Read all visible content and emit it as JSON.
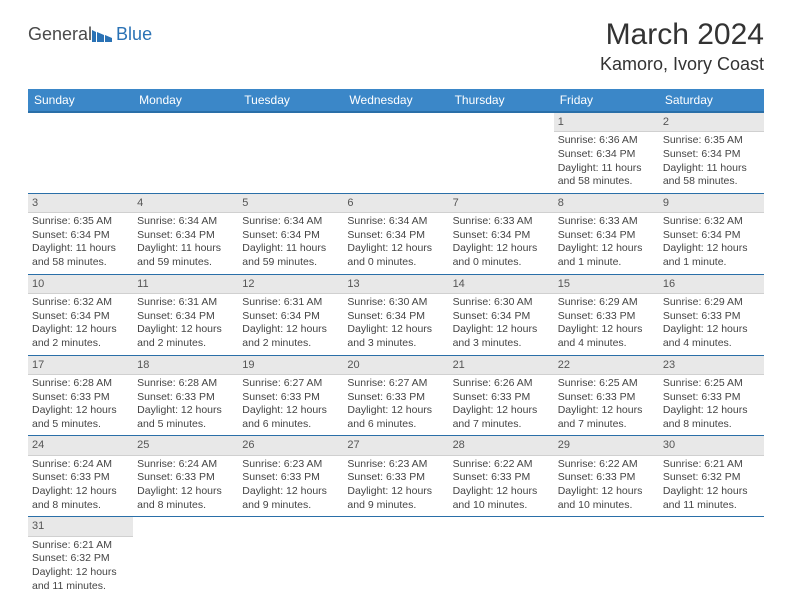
{
  "logo": {
    "text1": "General",
    "text2": "Blue"
  },
  "title": "March 2024",
  "location": "Kamoro, Ivory Coast",
  "colors": {
    "header_bg": "#3b87c8",
    "header_border": "#2a6fa8",
    "daynum_bg": "#e8e8e8",
    "text": "#444444"
  },
  "weekdays": [
    "Sunday",
    "Monday",
    "Tuesday",
    "Wednesday",
    "Thursday",
    "Friday",
    "Saturday"
  ],
  "cells": [
    [
      {
        "day": "",
        "lines": []
      },
      {
        "day": "",
        "lines": []
      },
      {
        "day": "",
        "lines": []
      },
      {
        "day": "",
        "lines": []
      },
      {
        "day": "",
        "lines": []
      },
      {
        "day": "1",
        "lines": [
          "Sunrise: 6:36 AM",
          "Sunset: 6:34 PM",
          "Daylight: 11 hours",
          "and 58 minutes."
        ]
      },
      {
        "day": "2",
        "lines": [
          "Sunrise: 6:35 AM",
          "Sunset: 6:34 PM",
          "Daylight: 11 hours",
          "and 58 minutes."
        ]
      }
    ],
    [
      {
        "day": "3",
        "lines": [
          "Sunrise: 6:35 AM",
          "Sunset: 6:34 PM",
          "Daylight: 11 hours",
          "and 58 minutes."
        ]
      },
      {
        "day": "4",
        "lines": [
          "Sunrise: 6:34 AM",
          "Sunset: 6:34 PM",
          "Daylight: 11 hours",
          "and 59 minutes."
        ]
      },
      {
        "day": "5",
        "lines": [
          "Sunrise: 6:34 AM",
          "Sunset: 6:34 PM",
          "Daylight: 11 hours",
          "and 59 minutes."
        ]
      },
      {
        "day": "6",
        "lines": [
          "Sunrise: 6:34 AM",
          "Sunset: 6:34 PM",
          "Daylight: 12 hours",
          "and 0 minutes."
        ]
      },
      {
        "day": "7",
        "lines": [
          "Sunrise: 6:33 AM",
          "Sunset: 6:34 PM",
          "Daylight: 12 hours",
          "and 0 minutes."
        ]
      },
      {
        "day": "8",
        "lines": [
          "Sunrise: 6:33 AM",
          "Sunset: 6:34 PM",
          "Daylight: 12 hours",
          "and 1 minute."
        ]
      },
      {
        "day": "9",
        "lines": [
          "Sunrise: 6:32 AM",
          "Sunset: 6:34 PM",
          "Daylight: 12 hours",
          "and 1 minute."
        ]
      }
    ],
    [
      {
        "day": "10",
        "lines": [
          "Sunrise: 6:32 AM",
          "Sunset: 6:34 PM",
          "Daylight: 12 hours",
          "and 2 minutes."
        ]
      },
      {
        "day": "11",
        "lines": [
          "Sunrise: 6:31 AM",
          "Sunset: 6:34 PM",
          "Daylight: 12 hours",
          "and 2 minutes."
        ]
      },
      {
        "day": "12",
        "lines": [
          "Sunrise: 6:31 AM",
          "Sunset: 6:34 PM",
          "Daylight: 12 hours",
          "and 2 minutes."
        ]
      },
      {
        "day": "13",
        "lines": [
          "Sunrise: 6:30 AM",
          "Sunset: 6:34 PM",
          "Daylight: 12 hours",
          "and 3 minutes."
        ]
      },
      {
        "day": "14",
        "lines": [
          "Sunrise: 6:30 AM",
          "Sunset: 6:34 PM",
          "Daylight: 12 hours",
          "and 3 minutes."
        ]
      },
      {
        "day": "15",
        "lines": [
          "Sunrise: 6:29 AM",
          "Sunset: 6:33 PM",
          "Daylight: 12 hours",
          "and 4 minutes."
        ]
      },
      {
        "day": "16",
        "lines": [
          "Sunrise: 6:29 AM",
          "Sunset: 6:33 PM",
          "Daylight: 12 hours",
          "and 4 minutes."
        ]
      }
    ],
    [
      {
        "day": "17",
        "lines": [
          "Sunrise: 6:28 AM",
          "Sunset: 6:33 PM",
          "Daylight: 12 hours",
          "and 5 minutes."
        ]
      },
      {
        "day": "18",
        "lines": [
          "Sunrise: 6:28 AM",
          "Sunset: 6:33 PM",
          "Daylight: 12 hours",
          "and 5 minutes."
        ]
      },
      {
        "day": "19",
        "lines": [
          "Sunrise: 6:27 AM",
          "Sunset: 6:33 PM",
          "Daylight: 12 hours",
          "and 6 minutes."
        ]
      },
      {
        "day": "20",
        "lines": [
          "Sunrise: 6:27 AM",
          "Sunset: 6:33 PM",
          "Daylight: 12 hours",
          "and 6 minutes."
        ]
      },
      {
        "day": "21",
        "lines": [
          "Sunrise: 6:26 AM",
          "Sunset: 6:33 PM",
          "Daylight: 12 hours",
          "and 7 minutes."
        ]
      },
      {
        "day": "22",
        "lines": [
          "Sunrise: 6:25 AM",
          "Sunset: 6:33 PM",
          "Daylight: 12 hours",
          "and 7 minutes."
        ]
      },
      {
        "day": "23",
        "lines": [
          "Sunrise: 6:25 AM",
          "Sunset: 6:33 PM",
          "Daylight: 12 hours",
          "and 8 minutes."
        ]
      }
    ],
    [
      {
        "day": "24",
        "lines": [
          "Sunrise: 6:24 AM",
          "Sunset: 6:33 PM",
          "Daylight: 12 hours",
          "and 8 minutes."
        ]
      },
      {
        "day": "25",
        "lines": [
          "Sunrise: 6:24 AM",
          "Sunset: 6:33 PM",
          "Daylight: 12 hours",
          "and 8 minutes."
        ]
      },
      {
        "day": "26",
        "lines": [
          "Sunrise: 6:23 AM",
          "Sunset: 6:33 PM",
          "Daylight: 12 hours",
          "and 9 minutes."
        ]
      },
      {
        "day": "27",
        "lines": [
          "Sunrise: 6:23 AM",
          "Sunset: 6:33 PM",
          "Daylight: 12 hours",
          "and 9 minutes."
        ]
      },
      {
        "day": "28",
        "lines": [
          "Sunrise: 6:22 AM",
          "Sunset: 6:33 PM",
          "Daylight: 12 hours",
          "and 10 minutes."
        ]
      },
      {
        "day": "29",
        "lines": [
          "Sunrise: 6:22 AM",
          "Sunset: 6:33 PM",
          "Daylight: 12 hours",
          "and 10 minutes."
        ]
      },
      {
        "day": "30",
        "lines": [
          "Sunrise: 6:21 AM",
          "Sunset: 6:32 PM",
          "Daylight: 12 hours",
          "and 11 minutes."
        ]
      }
    ],
    [
      {
        "day": "31",
        "lines": [
          "Sunrise: 6:21 AM",
          "Sunset: 6:32 PM",
          "Daylight: 12 hours",
          "and 11 minutes."
        ]
      },
      {
        "day": "",
        "lines": []
      },
      {
        "day": "",
        "lines": []
      },
      {
        "day": "",
        "lines": []
      },
      {
        "day": "",
        "lines": []
      },
      {
        "day": "",
        "lines": []
      },
      {
        "day": "",
        "lines": []
      }
    ]
  ]
}
